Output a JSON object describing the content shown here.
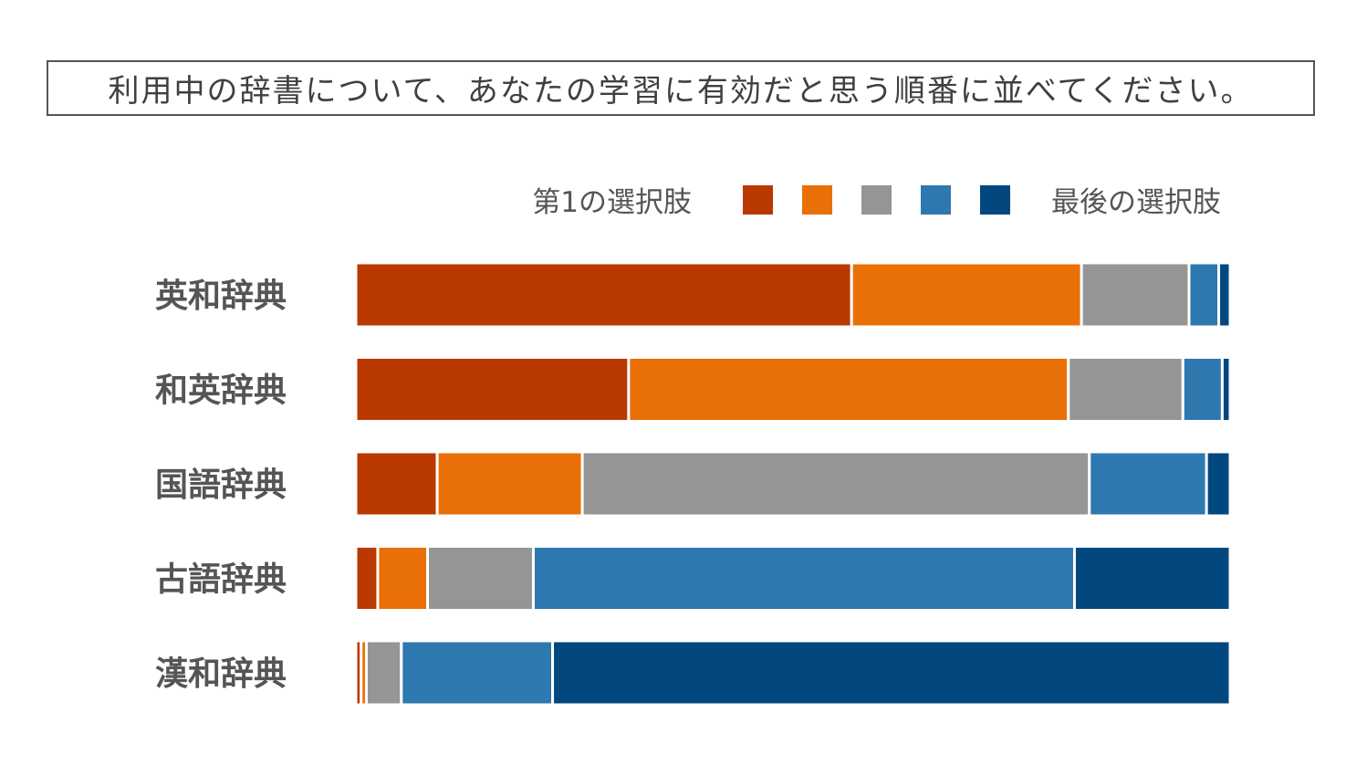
{
  "title": "利用中の辞書について、あなたの学習に有効だと思う順番に並べてください。",
  "chart_data": {
    "type": "bar",
    "orientation": "horizontal",
    "stacked": true,
    "percent_stacked": true,
    "title": "利用中の辞書について、あなたの学習に有効だと思う順番に並べてください。",
    "xlim": [
      0,
      100
    ],
    "grid": false,
    "legend_position": "top-right",
    "legend": {
      "start_label": "第1の選択肢",
      "end_label": "最後の選択肢"
    },
    "categories": [
      "英和辞典",
      "和英辞典",
      "国語辞典",
      "古語辞典",
      "漢和辞典"
    ],
    "series": [
      {
        "color": "#b93901",
        "values": [
          56.7,
          31.2,
          9.3,
          2.5,
          0.6
        ]
      },
      {
        "color": "#e97006",
        "values": [
          26.3,
          50.3,
          16.6,
          5.7,
          0.6
        ]
      },
      {
        "color": "#959595",
        "values": [
          12.3,
          13.1,
          58.0,
          12.1,
          4.0
        ]
      },
      {
        "color": "#2e78b0",
        "values": [
          3.4,
          4.5,
          13.4,
          61.9,
          17.3
        ]
      },
      {
        "color": "#03477f",
        "values": [
          1.3,
          0.9,
          2.7,
          17.8,
          77.5
        ]
      }
    ]
  }
}
